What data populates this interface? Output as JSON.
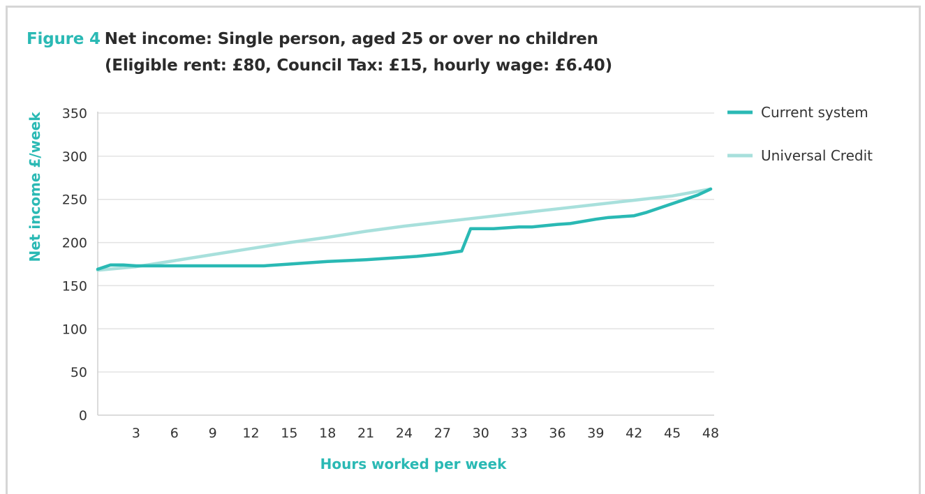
{
  "figure": {
    "label": "Figure 4",
    "title": "Net income: Single person, aged 25 or over no children",
    "subtitle": "(Eligible rent: £80, Council Tax: £15, hourly wage: £6.40)"
  },
  "chart_data": {
    "type": "line",
    "title": "Net income: Single person, aged 25 or over no children",
    "subtitle": "(Eligible rent: £80, Council Tax: £15, hourly wage: £6.40)",
    "xlabel": "Hours worked per week",
    "ylabel": "Net income £/week",
    "xlim": [
      0,
      48
    ],
    "ylim": [
      0,
      350
    ],
    "x_ticks": [
      3,
      6,
      9,
      12,
      15,
      18,
      21,
      24,
      27,
      30,
      33,
      36,
      39,
      42,
      45,
      48
    ],
    "y_ticks": [
      0,
      50,
      100,
      150,
      200,
      250,
      300,
      350
    ],
    "grid": "horizontal",
    "legend_position": "right",
    "series": [
      {
        "name": "Current system",
        "color": "#2ab9b4",
        "x": [
          0,
          1,
          2,
          3,
          6,
          9,
          12,
          13,
          15,
          18,
          21,
          24,
          25,
          27,
          28.5,
          29.2,
          30,
          31,
          33,
          34,
          36,
          37,
          39,
          40,
          42,
          43,
          45,
          47,
          48
        ],
        "y": [
          169,
          174,
          174,
          173,
          173,
          173,
          173,
          173,
          175,
          178,
          180,
          183,
          184,
          187,
          190,
          216,
          216,
          216,
          218,
          218,
          221,
          222,
          227,
          229,
          231,
          235,
          245,
          255,
          262
        ]
      },
      {
        "name": "Universal Credit",
        "color": "#a8e0dc",
        "x": [
          0,
          3,
          6,
          9,
          12,
          15,
          18,
          21,
          24,
          27,
          30,
          33,
          36,
          39,
          42,
          45,
          48
        ],
        "y": [
          168,
          172,
          179,
          186,
          193,
          200,
          206,
          213,
          219,
          224,
          229,
          234,
          239,
          244,
          249,
          254,
          262
        ]
      }
    ]
  }
}
